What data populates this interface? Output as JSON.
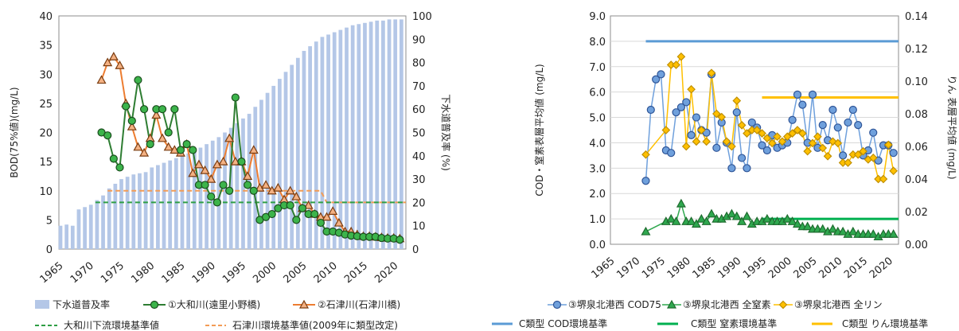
{
  "chart_data": [
    {
      "type": "line",
      "x_ticks": [
        "1965",
        "1970",
        "1975",
        "1980",
        "1985",
        "1990",
        "1995",
        "2000",
        "2005",
        "2010",
        "2015",
        "2020"
      ],
      "xlim": [
        1965,
        2022
      ],
      "ylabel": "BOD(75%値)(mg/L)",
      "ylim": [
        0,
        40
      ],
      "y_ticks": [
        "0",
        "5",
        "10",
        "15",
        "20",
        "25",
        "30",
        "35",
        "40"
      ],
      "ylabel_right": "下水道普及率 (%)",
      "ylim_right": [
        0,
        100
      ],
      "y_ticks_right": [
        "0",
        "10",
        "20",
        "30",
        "40",
        "50",
        "60",
        "70",
        "80",
        "90",
        "100"
      ],
      "grid": false,
      "legend_position": "bottom",
      "colors": {
        "bar": "#b4c7e7",
        "yamato": "#2e7d32",
        "yamato_fill": "#3cb44b",
        "ishizu": "#ed7d31",
        "ishizu_fill": "#f4b183",
        "std_yamato": "#2e9e44",
        "std_ishizu": "#f39c55"
      },
      "series": [
        {
          "name": "下水道普及率",
          "type": "bar",
          "axis": "right",
          "x": [
            1965,
            1966,
            1967,
            1968,
            1969,
            1970,
            1971,
            1972,
            1973,
            1974,
            1975,
            1976,
            1977,
            1978,
            1979,
            1980,
            1981,
            1982,
            1983,
            1984,
            1985,
            1986,
            1987,
            1988,
            1989,
            1990,
            1991,
            1992,
            1993,
            1994,
            1995,
            1996,
            1997,
            1998,
            1999,
            2000,
            2001,
            2002,
            2003,
            2004,
            2005,
            2006,
            2007,
            2008,
            2009,
            2010,
            2011,
            2012,
            2013,
            2014,
            2015,
            2016,
            2017,
            2018,
            2019,
            2020,
            2021
          ],
          "values": [
            10,
            10.5,
            10,
            17,
            18,
            19,
            21,
            23,
            26,
            28,
            30,
            31,
            32,
            32.5,
            33,
            35,
            36,
            37,
            38,
            39,
            40,
            41,
            42,
            43.5,
            45,
            46.5,
            48,
            50,
            52,
            54,
            56,
            58,
            61,
            64,
            67,
            70,
            73,
            76,
            79,
            82,
            85,
            87,
            89,
            91,
            92,
            93,
            94,
            95,
            96,
            96.5,
            97,
            97.5,
            98,
            98,
            98.5,
            98.5,
            98.5
          ]
        },
        {
          "name": "①大和川(遠里小野橋)",
          "type": "line",
          "axis": "left",
          "x": [
            1972,
            1973,
            1974,
            1975,
            1976,
            1977,
            1978,
            1979,
            1980,
            1981,
            1982,
            1983,
            1984,
            1985,
            1986,
            1987,
            1988,
            1989,
            1990,
            1991,
            1992,
            1993,
            1994,
            1995,
            1996,
            1997,
            1998,
            1999,
            2000,
            2001,
            2002,
            2003,
            2004,
            2005,
            2006,
            2007,
            2008,
            2009,
            2010,
            2011,
            2012,
            2013,
            2014,
            2015,
            2016,
            2017,
            2018,
            2019,
            2020,
            2021
          ],
          "values": [
            20,
            19.5,
            15.5,
            14,
            24.5,
            22,
            29,
            24,
            18,
            24,
            24,
            20,
            24,
            17,
            18,
            17,
            11,
            11,
            9,
            8,
            11,
            10,
            26,
            15,
            11,
            10,
            5,
            5.5,
            6,
            7,
            7.5,
            7.5,
            5,
            7,
            6,
            6,
            4.5,
            3,
            3,
            2.8,
            2.5,
            2.3,
            2.2,
            2.1,
            2.1,
            2.1,
            1.9,
            1.8,
            1.8,
            1.6
          ]
        },
        {
          "name": "②石津川(石津川橋)",
          "type": "line",
          "axis": "left",
          "x": [
            1972,
            1973,
            1974,
            1975,
            1976,
            1977,
            1978,
            1979,
            1980,
            1981,
            1982,
            1983,
            1984,
            1985,
            1986,
            1987,
            1988,
            1989,
            1990,
            1991,
            1992,
            1993,
            1994,
            1995,
            1996,
            1997,
            1998,
            1999,
            2000,
            2001,
            2002,
            2003,
            2004,
            2005,
            2006,
            2007,
            2008,
            2009,
            2010,
            2011,
            2012,
            2013,
            2014,
            2015,
            2016,
            2017,
            2018,
            2019,
            2020,
            2021
          ],
          "values": [
            29,
            32,
            33,
            31.5,
            25,
            21,
            17.5,
            16.5,
            19,
            23,
            19,
            17.5,
            17,
            16.5,
            18,
            13,
            14.5,
            13.5,
            12,
            14.5,
            15,
            19,
            15,
            15,
            12.5,
            17,
            10.5,
            11,
            10,
            10.5,
            8.5,
            10,
            9,
            7,
            7.5,
            6,
            5.5,
            5.5,
            6.5,
            4.5,
            3,
            3,
            2.5,
            2.2,
            2.2,
            2.1,
            2.0,
            1.9,
            1.9,
            1.8
          ]
        },
        {
          "name": "大和川下流環境基準値",
          "type": "line",
          "dashed": true,
          "axis": "left",
          "x": [
            1971,
            2022
          ],
          "values": [
            8,
            8
          ]
        },
        {
          "name": "石津川環境基準値(2009年に類型改定)",
          "type": "line",
          "dashed": true,
          "axis": "left",
          "x": [
            1973,
            2008,
            2009,
            2022
          ],
          "values": [
            10,
            10,
            8,
            8
          ]
        }
      ]
    },
    {
      "type": "line",
      "x_ticks": [
        "1965",
        "1970",
        "1975",
        "1980",
        "1985",
        "1990",
        "1995",
        "2000",
        "2005",
        "2010",
        "2015",
        "2020"
      ],
      "xlim": [
        1965,
        2022
      ],
      "ylabel": "COD・窒素表層平均値 (mg/L)",
      "ylim": [
        0,
        9
      ],
      "y_ticks": [
        "0.0",
        "1.0",
        "2.0",
        "3.0",
        "4.0",
        "5.0",
        "6.0",
        "7.0",
        "8.0",
        "9.0"
      ],
      "ylabel_right": "りん 表層平均値 (mg/L)",
      "ylim_right": [
        0,
        0.14
      ],
      "y_ticks_right": [
        "0.00",
        "0.02",
        "0.04",
        "0.06",
        "0.08",
        "0.10",
        "0.12",
        "0.14"
      ],
      "grid": true,
      "legend_position": "bottom",
      "colors": {
        "cod": "#2f5597",
        "cod_fill": "#6fa0dc",
        "n": "#1e6b2e",
        "n_fill": "#2fa84f",
        "p": "#bf8f00",
        "p_fill": "#ffc000",
        "std_cod": "#5b9bd5",
        "std_n": "#00b050",
        "std_p": "#ffc000"
      },
      "series": [
        {
          "name": "③堺泉北港西 COD75",
          "type": "line",
          "axis": "left",
          "x": [
            1972,
            1973,
            1974,
            1975,
            1976,
            1977,
            1978,
            1979,
            1980,
            1981,
            1982,
            1983,
            1984,
            1985,
            1986,
            1987,
            1988,
            1989,
            1990,
            1991,
            1992,
            1993,
            1994,
            1995,
            1996,
            1997,
            1998,
            1999,
            2000,
            2001,
            2002,
            2003,
            2004,
            2005,
            2006,
            2007,
            2008,
            2009,
            2010,
            2011,
            2012,
            2013,
            2014,
            2015,
            2016,
            2017,
            2018,
            2019,
            2020,
            2021
          ],
          "values": [
            2.5,
            5.3,
            6.5,
            6.7,
            3.7,
            3.6,
            5.2,
            5.4,
            5.6,
            4.3,
            5.0,
            4.5,
            4.4,
            6.7,
            3.8,
            4.8,
            4.0,
            3.0,
            5.2,
            3.4,
            3.0,
            4.8,
            4.6,
            3.9,
            3.7,
            4.3,
            3.8,
            3.9,
            4.0,
            4.9,
            5.9,
            5.5,
            4.0,
            5.9,
            3.8,
            4.7,
            4.1,
            5.3,
            4.6,
            3.5,
            4.8,
            5.3,
            4.7,
            3.5,
            3.7,
            4.4,
            3.3,
            3.9,
            3.9,
            3.6
          ]
        },
        {
          "name": "③堺泉北港西 全窒素",
          "type": "line",
          "axis": "left",
          "x": [
            1972,
            1976,
            1977,
            1978,
            1979,
            1980,
            1981,
            1982,
            1983,
            1984,
            1985,
            1986,
            1987,
            1988,
            1989,
            1990,
            1991,
            1992,
            1993,
            1994,
            1995,
            1996,
            1997,
            1998,
            1999,
            2000,
            2001,
            2002,
            2003,
            2004,
            2005,
            2006,
            2007,
            2008,
            2009,
            2010,
            2011,
            2012,
            2013,
            2014,
            2015,
            2016,
            2017,
            2018,
            2019,
            2020,
            2021
          ],
          "values": [
            0.5,
            0.9,
            1.0,
            0.9,
            1.6,
            0.9,
            0.9,
            0.8,
            1.0,
            0.9,
            1.2,
            1.0,
            1.0,
            1.1,
            1.2,
            1.1,
            0.9,
            1.1,
            0.8,
            0.9,
            0.9,
            1.0,
            0.9,
            0.9,
            0.9,
            1.0,
            0.9,
            0.8,
            0.7,
            0.7,
            0.6,
            0.6,
            0.6,
            0.5,
            0.6,
            0.5,
            0.5,
            0.4,
            0.5,
            0.4,
            0.4,
            0.4,
            0.4,
            0.3,
            0.4,
            0.4,
            0.4
          ]
        },
        {
          "name": "③堺泉北港西 全リン",
          "type": "line",
          "axis": "right",
          "x": [
            1972,
            1976,
            1977,
            1978,
            1979,
            1980,
            1981,
            1982,
            1983,
            1984,
            1985,
            1986,
            1987,
            1988,
            1989,
            1990,
            1991,
            1992,
            1993,
            1994,
            1995,
            1996,
            1997,
            1998,
            1999,
            2000,
            2001,
            2002,
            2003,
            2004,
            2005,
            2006,
            2007,
            2008,
            2009,
            2010,
            2011,
            2012,
            2013,
            2014,
            2015,
            2016,
            2017,
            2018,
            2019,
            2020,
            2021
          ],
          "values": [
            0.055,
            0.07,
            0.11,
            0.11,
            0.115,
            0.06,
            0.095,
            0.063,
            0.07,
            0.063,
            0.105,
            0.08,
            0.078,
            0.063,
            0.06,
            0.088,
            0.073,
            0.068,
            0.07,
            0.07,
            0.068,
            0.065,
            0.062,
            0.066,
            0.063,
            0.066,
            0.068,
            0.07,
            0.068,
            0.057,
            0.062,
            0.066,
            0.059,
            0.054,
            0.063,
            0.062,
            0.05,
            0.05,
            0.055,
            0.055,
            0.057,
            0.052,
            0.053,
            0.04,
            0.04,
            0.061,
            0.045
          ]
        },
        {
          "name": "C類型 COD環境基準",
          "type": "line",
          "axis": "left",
          "x": [
            1972,
            2022
          ],
          "values": [
            8.0,
            8.0
          ]
        },
        {
          "name": "C類型 窒素環境基準",
          "type": "line",
          "axis": "left",
          "x": [
            1995,
            2022
          ],
          "values": [
            1.0,
            1.0
          ]
        },
        {
          "name": "C類型 りん環境基準",
          "type": "line",
          "axis": "right",
          "x": [
            1995,
            2022
          ],
          "values": [
            0.09,
            0.09
          ]
        }
      ]
    }
  ]
}
